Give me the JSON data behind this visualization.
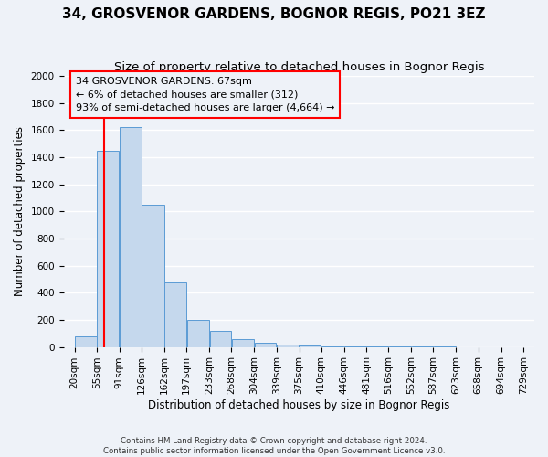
{
  "title": "34, GROSVENOR GARDENS, BOGNOR REGIS, PO21 3EZ",
  "subtitle": "Size of property relative to detached houses in Bognor Regis",
  "xlabel": "Distribution of detached houses by size in Bognor Regis",
  "ylabel": "Number of detached properties",
  "footer_line1": "Contains HM Land Registry data © Crown copyright and database right 2024.",
  "footer_line2": "Contains public sector information licensed under the Open Government Licence v3.0.",
  "annotation_line1": "34 GROSVENOR GARDENS: 67sqm",
  "annotation_line2": "← 6% of detached houses are smaller (312)",
  "annotation_line3": "93% of semi-detached houses are larger (4,664) →",
  "property_size": 67,
  "bin_edges": [
    20,
    55,
    91,
    126,
    162,
    197,
    233,
    268,
    304,
    339,
    375,
    410,
    446,
    481,
    516,
    552,
    587,
    623,
    658,
    694,
    729
  ],
  "bin_labels": [
    "20sqm",
    "55sqm",
    "91sqm",
    "126sqm",
    "162sqm",
    "197sqm",
    "233sqm",
    "268sqm",
    "304sqm",
    "339sqm",
    "375sqm",
    "410sqm",
    "446sqm",
    "481sqm",
    "516sqm",
    "552sqm",
    "587sqm",
    "623sqm",
    "658sqm",
    "694sqm",
    "729sqm"
  ],
  "counts": [
    75,
    1450,
    1625,
    1050,
    475,
    200,
    120,
    55,
    30,
    15,
    10,
    5,
    3,
    2,
    1,
    1,
    1,
    0,
    0,
    0
  ],
  "bar_color": "#c5d8ed",
  "bar_edge_color": "#5b9bd5",
  "marker_color": "#ff0000",
  "annotation_box_color": "#ff0000",
  "ylim": [
    0,
    2000
  ],
  "yticks": [
    0,
    200,
    400,
    600,
    800,
    1000,
    1200,
    1400,
    1600,
    1800,
    2000
  ],
  "bg_color": "#eef2f8",
  "grid_color": "#ffffff",
  "title_fontsize": 11,
  "subtitle_fontsize": 9.5,
  "label_fontsize": 8.5,
  "tick_fontsize": 7.5,
  "annotation_fontsize": 8
}
